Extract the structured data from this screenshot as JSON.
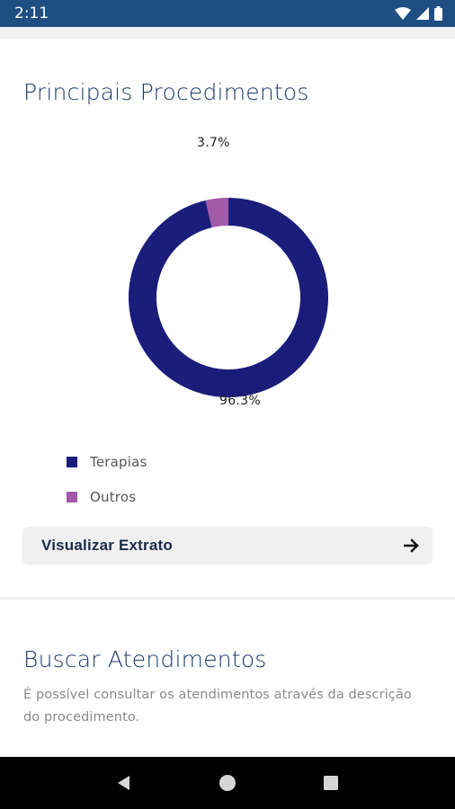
{
  "status_bar": {
    "time": "2:11"
  },
  "procedimentos": {
    "title": "Principais Procedimentos",
    "chart_data": {
      "type": "pie",
      "variant": "donut",
      "slices": [
        {
          "name": "Terapias",
          "value": 96.3,
          "label": "96.3%",
          "color": "#1a1d7a"
        },
        {
          "name": "Outros",
          "value": 3.7,
          "label": "3.7%",
          "color": "#a259a8"
        }
      ],
      "legend_position": "bottom-left"
    },
    "legend": [
      {
        "label": "Terapias",
        "color": "#1a1d7a"
      },
      {
        "label": "Outros",
        "color": "#a259a8"
      }
    ],
    "extrato_button": {
      "label": "Visualizar Extrato",
      "icon": "arrow-right-icon"
    }
  },
  "buscar": {
    "title": "Buscar Atendimentos",
    "description": "É possível consultar os atendimentos através da descrição do procedimento."
  },
  "colors": {
    "status_bar": "#1f4f82",
    "title": "#1e3a6e",
    "terapias": "#1a1d7a",
    "outros": "#a259a8"
  }
}
